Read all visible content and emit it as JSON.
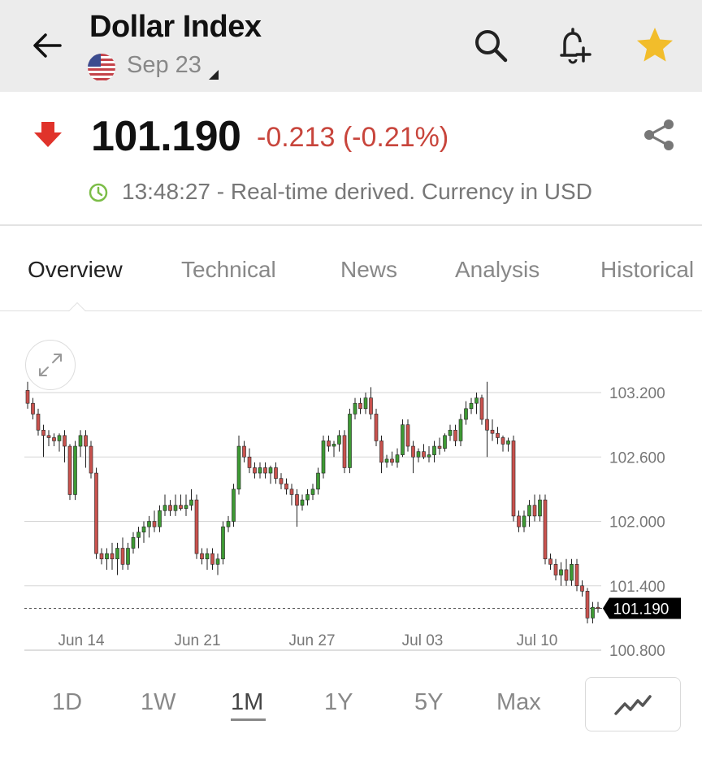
{
  "header": {
    "title": "Dollar Index",
    "date": "Sep 23",
    "back_icon": "arrow-left-icon",
    "flag_icon": "us-flag-icon",
    "search_icon": "search-icon",
    "alert_icon": "bell-plus-icon",
    "favorite_icon": "star-icon",
    "favorite_color": "#f2bd2b"
  },
  "quote": {
    "direction_icon": "arrow-down-icon",
    "price": "101.190",
    "change": "-0.213 (-0.21%)",
    "change_color": "#c8453c",
    "time_status": "13:48:27 - Real-time derived. Currency in USD",
    "clock_color": "#7cbd48",
    "share_icon": "share-icon"
  },
  "tabs": [
    {
      "label": "Overview",
      "active": true
    },
    {
      "label": "Technical",
      "active": false
    },
    {
      "label": "News",
      "active": false
    },
    {
      "label": "Analysis",
      "active": false
    },
    {
      "label": "Historical",
      "active": false
    }
  ],
  "ranges": [
    {
      "label": "1D",
      "active": false
    },
    {
      "label": "1W",
      "active": false
    },
    {
      "label": "1M",
      "active": true
    },
    {
      "label": "1Y",
      "active": false
    },
    {
      "label": "5Y",
      "active": false
    },
    {
      "label": "Max",
      "active": false
    }
  ],
  "chart_type_icon": "line-chart-icon",
  "expand_icon": "expand-icon",
  "chart_data": {
    "type": "candlestick",
    "ylim": [
      100.8,
      103.4
    ],
    "y_ticks": [
      "103.200",
      "102.600",
      "102.000",
      "101.400",
      "100.800"
    ],
    "x_ticks": [
      "Jun 14",
      "Jun 21",
      "Jun 27",
      "Jul 03",
      "Jul 10"
    ],
    "current_price_label": "101.190",
    "current_price": 101.19,
    "grid": true,
    "up_color": "#3e9a34",
    "down_color": "#c9524e",
    "candles": [
      [
        103.22,
        103.3,
        103.05,
        103.1
      ],
      [
        103.1,
        103.15,
        102.95,
        103.0
      ],
      [
        103.0,
        103.05,
        102.8,
        102.85
      ],
      [
        102.85,
        102.9,
        102.6,
        102.8
      ],
      [
        102.8,
        102.85,
        102.7,
        102.78
      ],
      [
        102.78,
        102.82,
        102.7,
        102.75
      ],
      [
        102.75,
        102.82,
        102.65,
        102.8
      ],
      [
        102.8,
        102.85,
        102.55,
        102.7
      ],
      [
        102.7,
        102.72,
        102.2,
        102.25
      ],
      [
        102.25,
        102.75,
        102.2,
        102.7
      ],
      [
        102.7,
        102.85,
        102.6,
        102.8
      ],
      [
        102.8,
        102.85,
        102.5,
        102.7
      ],
      [
        102.7,
        102.75,
        102.4,
        102.45
      ],
      [
        102.45,
        102.5,
        101.65,
        101.7
      ],
      [
        101.7,
        101.75,
        101.6,
        101.65
      ],
      [
        101.65,
        101.75,
        101.55,
        101.7
      ],
      [
        101.7,
        101.8,
        101.55,
        101.65
      ],
      [
        101.65,
        101.8,
        101.5,
        101.75
      ],
      [
        101.75,
        101.85,
        101.55,
        101.6
      ],
      [
        101.6,
        101.8,
        101.55,
        101.75
      ],
      [
        101.75,
        101.9,
        101.7,
        101.85
      ],
      [
        101.85,
        101.95,
        101.75,
        101.9
      ],
      [
        101.9,
        102.0,
        101.8,
        101.95
      ],
      [
        101.95,
        102.05,
        101.85,
        102.0
      ],
      [
        102.0,
        102.1,
        101.9,
        101.95
      ],
      [
        101.95,
        102.15,
        101.9,
        102.1
      ],
      [
        102.1,
        102.25,
        102.05,
        102.15
      ],
      [
        102.15,
        102.2,
        102.05,
        102.1
      ],
      [
        102.1,
        102.25,
        102.05,
        102.15
      ],
      [
        102.15,
        102.25,
        102.1,
        102.12
      ],
      [
        102.12,
        102.25,
        102.05,
        102.15
      ],
      [
        102.15,
        102.3,
        102.1,
        102.2
      ],
      [
        102.2,
        102.25,
        101.65,
        101.7
      ],
      [
        101.7,
        101.75,
        101.6,
        101.65
      ],
      [
        101.65,
        101.75,
        101.55,
        101.7
      ],
      [
        101.7,
        101.75,
        101.55,
        101.6
      ],
      [
        101.6,
        101.7,
        101.5,
        101.65
      ],
      [
        101.65,
        102.0,
        101.6,
        101.95
      ],
      [
        101.95,
        102.05,
        101.9,
        102.0
      ],
      [
        102.0,
        102.35,
        101.95,
        102.3
      ],
      [
        102.3,
        102.8,
        102.25,
        102.7
      ],
      [
        102.7,
        102.75,
        102.55,
        102.6
      ],
      [
        102.6,
        102.68,
        102.45,
        102.5
      ],
      [
        102.5,
        102.55,
        102.4,
        102.45
      ],
      [
        102.45,
        102.55,
        102.4,
        102.5
      ],
      [
        102.5,
        102.55,
        102.4,
        102.45
      ],
      [
        102.45,
        102.52,
        102.35,
        102.5
      ],
      [
        102.5,
        102.55,
        102.35,
        102.4
      ],
      [
        102.4,
        102.45,
        102.3,
        102.35
      ],
      [
        102.35,
        102.4,
        102.25,
        102.3
      ],
      [
        102.3,
        102.35,
        102.15,
        102.25
      ],
      [
        102.25,
        102.3,
        101.95,
        102.15
      ],
      [
        102.15,
        102.25,
        102.1,
        102.2
      ],
      [
        102.2,
        102.3,
        102.15,
        102.25
      ],
      [
        102.25,
        102.35,
        102.2,
        102.3
      ],
      [
        102.3,
        102.5,
        102.25,
        102.45
      ],
      [
        102.45,
        102.8,
        102.4,
        102.75
      ],
      [
        102.75,
        102.8,
        102.65,
        102.7
      ],
      [
        102.7,
        102.75,
        102.6,
        102.72
      ],
      [
        102.72,
        102.85,
        102.65,
        102.8
      ],
      [
        102.8,
        102.85,
        102.45,
        102.5
      ],
      [
        102.5,
        103.05,
        102.45,
        103.0
      ],
      [
        103.0,
        103.15,
        102.95,
        103.1
      ],
      [
        103.1,
        103.15,
        103.0,
        103.05
      ],
      [
        103.05,
        103.2,
        103.0,
        103.15
      ],
      [
        103.15,
        103.25,
        102.95,
        103.0
      ],
      [
        103.0,
        103.05,
        102.7,
        102.75
      ],
      [
        102.75,
        102.8,
        102.45,
        102.55
      ],
      [
        102.55,
        102.62,
        102.5,
        102.58
      ],
      [
        102.58,
        102.65,
        102.52,
        102.55
      ],
      [
        102.55,
        102.68,
        102.5,
        102.62
      ],
      [
        102.62,
        102.95,
        102.6,
        102.9
      ],
      [
        102.9,
        102.95,
        102.65,
        102.7
      ],
      [
        102.7,
        102.75,
        102.45,
        102.6
      ],
      [
        102.6,
        102.68,
        102.55,
        102.65
      ],
      [
        102.65,
        102.72,
        102.58,
        102.6
      ],
      [
        102.6,
        102.7,
        102.55,
        102.62
      ],
      [
        102.62,
        102.75,
        102.55,
        102.7
      ],
      [
        102.7,
        102.78,
        102.62,
        102.68
      ],
      [
        102.68,
        102.82,
        102.65,
        102.8
      ],
      [
        102.8,
        102.9,
        102.75,
        102.85
      ],
      [
        102.85,
        102.9,
        102.7,
        102.75
      ],
      [
        102.75,
        103.0,
        102.7,
        102.95
      ],
      [
        102.95,
        103.12,
        102.9,
        103.05
      ],
      [
        103.05,
        103.15,
        103.0,
        103.1
      ],
      [
        103.1,
        103.2,
        103.0,
        103.15
      ],
      [
        103.15,
        103.18,
        102.9,
        102.95
      ],
      [
        102.95,
        103.3,
        102.6,
        102.85
      ],
      [
        102.85,
        102.95,
        102.75,
        102.82
      ],
      [
        102.82,
        102.88,
        102.72,
        102.78
      ],
      [
        102.78,
        102.8,
        102.65,
        102.72
      ],
      [
        102.72,
        102.78,
        102.65,
        102.75
      ],
      [
        102.75,
        102.8,
        102.0,
        102.05
      ],
      [
        102.05,
        102.1,
        101.9,
        101.95
      ],
      [
        101.95,
        102.1,
        101.9,
        102.05
      ],
      [
        102.05,
        102.2,
        101.95,
        102.15
      ],
      [
        102.15,
        102.25,
        102.0,
        102.05
      ],
      [
        102.05,
        102.25,
        102.0,
        102.2
      ],
      [
        102.2,
        102.25,
        101.6,
        101.65
      ],
      [
        101.65,
        101.7,
        101.55,
        101.6
      ],
      [
        101.6,
        101.65,
        101.45,
        101.5
      ],
      [
        101.5,
        101.62,
        101.4,
        101.55
      ],
      [
        101.55,
        101.65,
        101.4,
        101.45
      ],
      [
        101.45,
        101.65,
        101.4,
        101.6
      ],
      [
        101.6,
        101.65,
        101.35,
        101.4
      ],
      [
        101.4,
        101.45,
        101.3,
        101.35
      ],
      [
        101.35,
        101.38,
        101.05,
        101.1
      ],
      [
        101.1,
        101.25,
        101.05,
        101.2
      ],
      [
        101.2,
        101.25,
        101.15,
        101.19
      ]
    ]
  }
}
